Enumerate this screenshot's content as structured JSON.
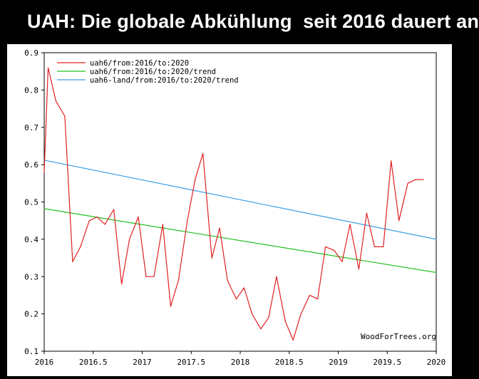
{
  "header": {
    "title": "UAH: Die globale Abkühlung  seit 2016 dauert an"
  },
  "credit": "WoodForTrees.org",
  "colors": {
    "background": "#ffffff",
    "axis": "#000000",
    "data_series": "#e02020",
    "trend_global": "#20c020",
    "trend_land": "#3a9ee6"
  },
  "chart_data": {
    "type": "line",
    "title": "",
    "xlabel": "",
    "ylabel": "",
    "xlim": [
      2016,
      2020
    ],
    "ylim": [
      0.1,
      0.9
    ],
    "x_ticks": [
      2016,
      2016.5,
      2017,
      2017.5,
      2018,
      2018.5,
      2019,
      2019.5,
      2020
    ],
    "x_tick_labels": [
      "2016",
      "2016.5",
      "2017",
      "2017.5",
      "2018",
      "2018.5",
      "2019",
      "2019.5",
      "2020"
    ],
    "y_ticks": [
      0.1,
      0.2,
      0.3,
      0.4,
      0.5,
      0.6,
      0.7,
      0.8,
      0.9
    ],
    "y_tick_labels": [
      "0.1",
      "0.2",
      "0.3",
      "0.4",
      "0.5",
      "0.6",
      "0.7",
      "0.8",
      "0.9"
    ],
    "grid": false,
    "legend_position": "top-left",
    "series": [
      {
        "name": "uah6/from:2016/to:2020",
        "color": "#e02020",
        "style": "line",
        "x": [
          2016.0,
          2016.04,
          2016.12,
          2016.21,
          2016.29,
          2016.37,
          2016.46,
          2016.54,
          2016.62,
          2016.71,
          2016.79,
          2016.87,
          2016.96,
          2017.04,
          2017.12,
          2017.21,
          2017.29,
          2017.37,
          2017.46,
          2017.54,
          2017.62,
          2017.71,
          2017.79,
          2017.87,
          2017.96,
          2018.04,
          2018.12,
          2018.21,
          2018.29,
          2018.37,
          2018.46,
          2018.54,
          2018.62,
          2018.71,
          2018.79,
          2018.87,
          2018.96,
          2019.04,
          2019.12,
          2019.21,
          2019.29,
          2019.37,
          2019.46,
          2019.54,
          2019.62,
          2019.71,
          2019.79,
          2019.87
        ],
        "y": [
          0.58,
          0.86,
          0.77,
          0.73,
          0.34,
          0.38,
          0.45,
          0.46,
          0.44,
          0.48,
          0.28,
          0.4,
          0.46,
          0.3,
          0.3,
          0.44,
          0.22,
          0.29,
          0.45,
          0.56,
          0.63,
          0.35,
          0.43,
          0.29,
          0.24,
          0.27,
          0.2,
          0.16,
          0.19,
          0.3,
          0.18,
          0.13,
          0.2,
          0.25,
          0.24,
          0.38,
          0.37,
          0.34,
          0.44,
          0.32,
          0.47,
          0.38,
          0.38,
          0.61,
          0.45,
          0.55,
          0.56,
          0.56
        ]
      },
      {
        "name": "uah6/from:2016/to:2020/trend",
        "color": "#20c020",
        "style": "line",
        "x": [
          2016.0,
          2020.0
        ],
        "y": [
          0.482,
          0.311
        ]
      },
      {
        "name": "uah6-land/from:2016/to:2020/trend",
        "color": "#3a9ee6",
        "style": "line",
        "x": [
          2016.0,
          2020.0
        ],
        "y": [
          0.612,
          0.4
        ]
      }
    ]
  }
}
